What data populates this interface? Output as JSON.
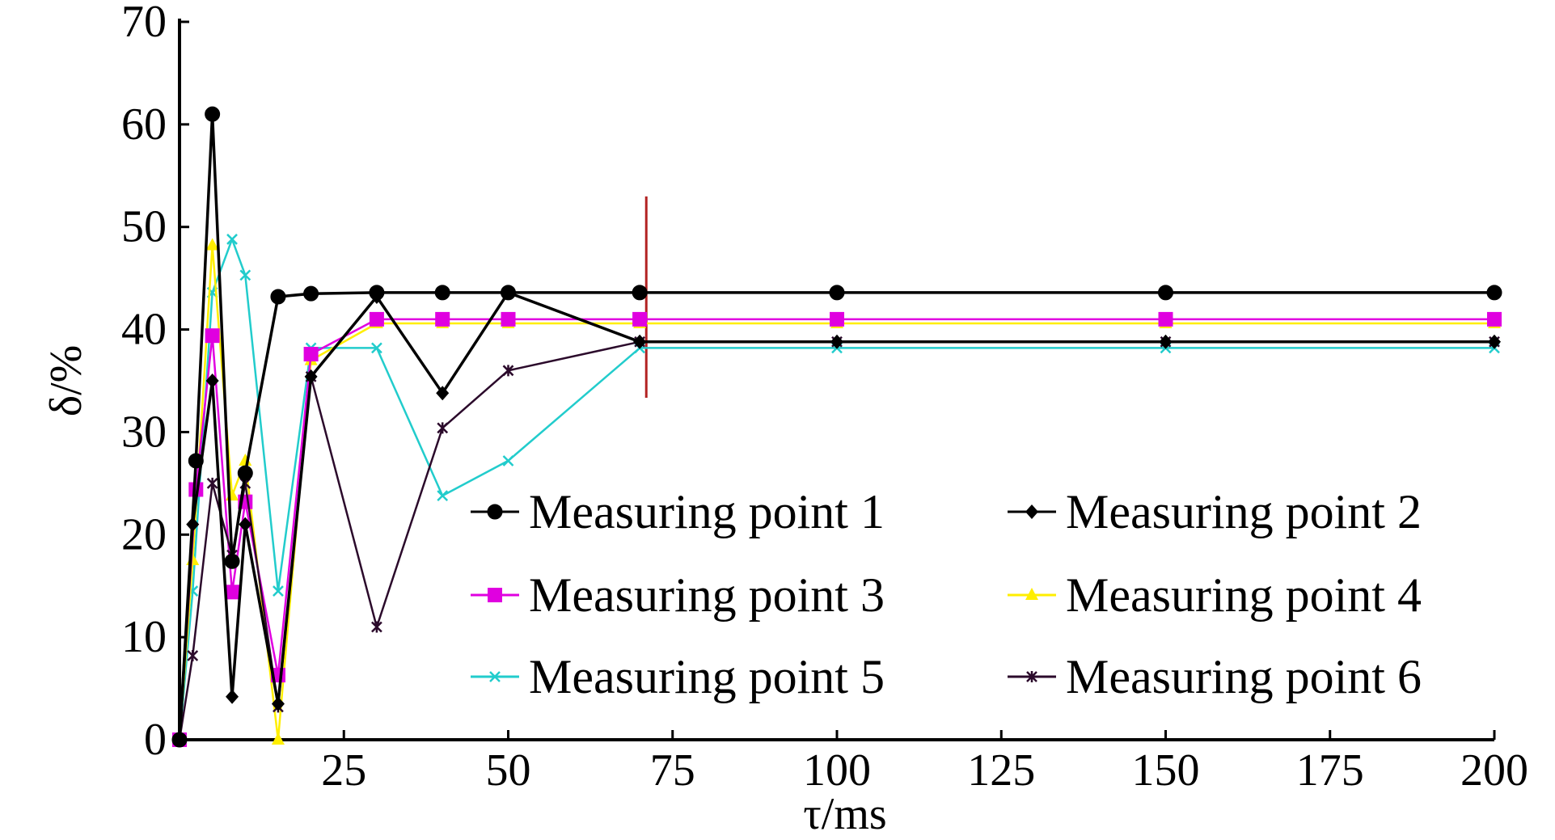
{
  "chart_data": {
    "type": "line",
    "xlabel": "τ/ms",
    "ylabel": "δ/%",
    "xlim": [
      0,
      200
    ],
    "ylim": [
      0,
      70
    ],
    "x_ticks": [
      25,
      50,
      75,
      100,
      125,
      150,
      175,
      200
    ],
    "y_ticks": [
      0,
      10,
      20,
      30,
      40,
      50,
      60,
      70
    ],
    "grid": false,
    "legend_position": "lower-right",
    "marker_line_x": 71,
    "marker_line_color": "#b22222",
    "series": [
      {
        "name": "Measuring point 1",
        "color": "#000000",
        "marker": "circle",
        "points": [
          [
            0,
            0
          ],
          [
            2.5,
            27.2
          ],
          [
            5,
            61
          ],
          [
            8,
            17.4
          ],
          [
            10,
            26
          ],
          [
            15,
            43.2
          ],
          [
            20,
            43.5
          ],
          [
            30,
            43.6
          ],
          [
            40,
            43.6
          ],
          [
            50,
            43.6
          ],
          [
            70,
            43.6
          ],
          [
            100,
            43.6
          ],
          [
            150,
            43.6
          ],
          [
            200,
            43.6
          ]
        ]
      },
      {
        "name": "Measuring point 2",
        "color": "#000000",
        "marker": "diamond",
        "points": [
          [
            0,
            0
          ],
          [
            2,
            21
          ],
          [
            5,
            35
          ],
          [
            8,
            4.2
          ],
          [
            10,
            21
          ],
          [
            15,
            3.5
          ],
          [
            20,
            35.4
          ],
          [
            30,
            43.2
          ],
          [
            40,
            33.8
          ],
          [
            50,
            43.6
          ],
          [
            70,
            38.8
          ],
          [
            100,
            38.8
          ],
          [
            150,
            38.8
          ],
          [
            200,
            38.8
          ]
        ]
      },
      {
        "name": "Measuring point 3",
        "color": "#e000e0",
        "marker": "square",
        "points": [
          [
            0,
            0
          ],
          [
            2.5,
            24.4
          ],
          [
            5,
            39.4
          ],
          [
            8,
            14.4
          ],
          [
            10,
            23.2
          ],
          [
            15,
            6.3
          ],
          [
            20,
            37.6
          ],
          [
            30,
            41
          ],
          [
            40,
            41
          ],
          [
            50,
            41
          ],
          [
            70,
            41
          ],
          [
            100,
            41
          ],
          [
            150,
            41
          ],
          [
            200,
            41
          ]
        ]
      },
      {
        "name": "Measuring point 4",
        "color": "#ffee00",
        "marker": "triangle",
        "points": [
          [
            0,
            0
          ],
          [
            2,
            17.5
          ],
          [
            5,
            48.2
          ],
          [
            8,
            23.8
          ],
          [
            10,
            27.2
          ],
          [
            15,
            0
          ],
          [
            20,
            37
          ],
          [
            30,
            40.6
          ],
          [
            40,
            40.6
          ],
          [
            50,
            40.6
          ],
          [
            70,
            40.6
          ],
          [
            100,
            40.6
          ],
          [
            150,
            40.6
          ],
          [
            200,
            40.6
          ]
        ]
      },
      {
        "name": "Measuring point 5",
        "color": "#22cccc",
        "marker": "x",
        "points": [
          [
            0,
            0
          ],
          [
            2,
            14.5
          ],
          [
            5,
            43.6
          ],
          [
            8,
            48.8
          ],
          [
            10,
            45.3
          ],
          [
            15,
            14.5
          ],
          [
            20,
            38.2
          ],
          [
            30,
            38.2
          ],
          [
            40,
            23.8
          ],
          [
            50,
            27.2
          ],
          [
            70,
            38.2
          ],
          [
            100,
            38.2
          ],
          [
            150,
            38.2
          ],
          [
            200,
            38.2
          ]
        ]
      },
      {
        "name": "Measuring point 6",
        "color": "#2b0a2b",
        "marker": "asterisk",
        "points": [
          [
            0,
            0
          ],
          [
            2,
            8.2
          ],
          [
            5,
            25
          ],
          [
            8,
            18
          ],
          [
            10,
            25
          ],
          [
            15,
            3.2
          ],
          [
            20,
            35.4
          ],
          [
            30,
            11
          ],
          [
            40,
            30.4
          ],
          [
            50,
            36
          ],
          [
            70,
            38.8
          ],
          [
            100,
            38.8
          ],
          [
            150,
            38.8
          ],
          [
            200,
            38.8
          ]
        ]
      }
    ]
  }
}
